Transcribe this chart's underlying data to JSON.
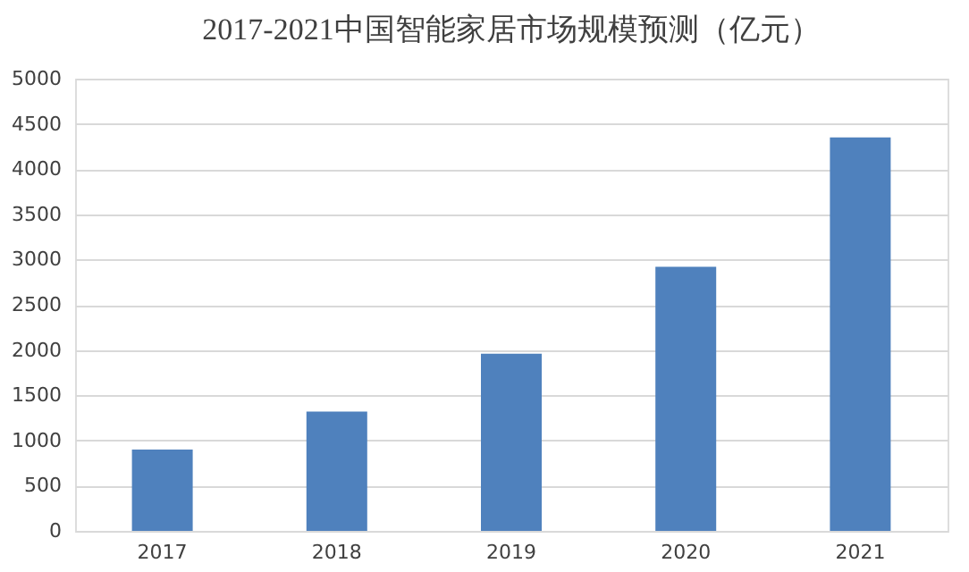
{
  "chart_data": {
    "type": "bar",
    "title": "2017-2021中国智能家居市场规模预测（亿元）",
    "categories": [
      "2017",
      "2018",
      "2019",
      "2020",
      "2021"
    ],
    "values": [
      900,
      1320,
      1960,
      2920,
      4350
    ],
    "color": "#4f81bd",
    "ylim": [
      0,
      5000
    ],
    "yticks": [
      0,
      500,
      1000,
      1500,
      2000,
      2500,
      3000,
      3500,
      4000,
      4500,
      5000
    ],
    "grid": "y"
  }
}
